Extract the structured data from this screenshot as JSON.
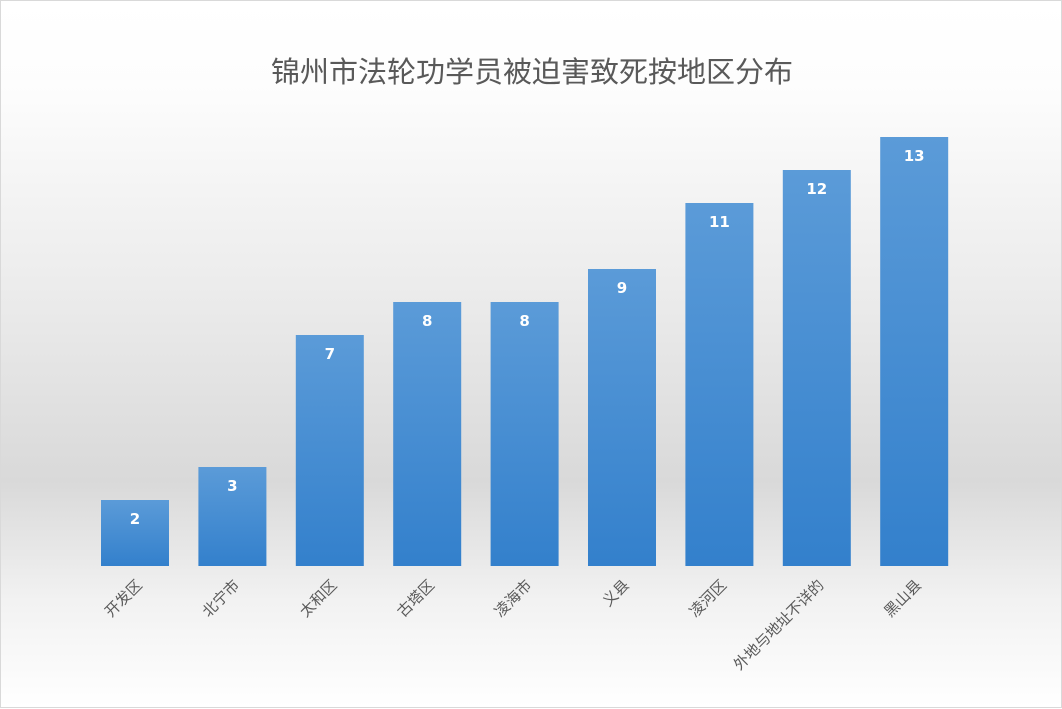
{
  "chart_data": {
    "type": "bar",
    "title": "锦州市法轮功学员被迫害致死按地区分布",
    "categories": [
      "开发区",
      "北宁市",
      "太和区",
      "古塔区",
      "凌海市",
      "义县",
      "凌河区",
      "外地与地址不详的",
      "黑山县"
    ],
    "values": [
      2,
      3,
      7,
      8,
      8,
      9,
      11,
      12,
      13
    ],
    "xlabel": "",
    "ylabel": "",
    "ylim": [
      0,
      13
    ],
    "grid": false,
    "legend": "none",
    "bar_color": "#3a85cf",
    "label_color": "#ffffff"
  }
}
